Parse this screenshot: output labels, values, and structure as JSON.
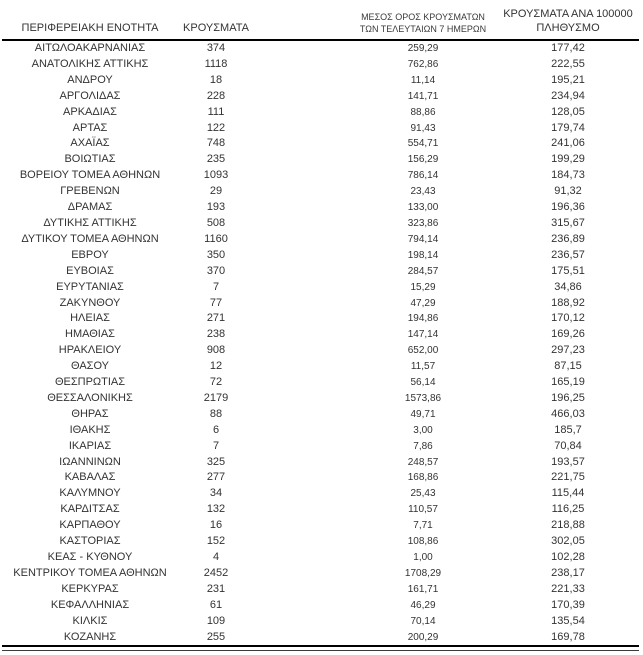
{
  "colors": {
    "text": "#333333",
    "rule": "#000000",
    "background": "#ffffff"
  },
  "chart_data": {
    "type": "table",
    "title": "",
    "columns": [
      "ΠΕΡΙΦΕΡΕΙΑΚΗ ΕΝΟΤΗΤΑ",
      "ΚΡΟΥΣΜΑΤΑ",
      "ΜΕΣΟΣ ΟΡΟΣ ΚΡΟΥΣΜΑΤΩΝ ΤΩΝ ΤΕΛΕΥΤΑΙΩΝ 7 ΗΜΕΡΩΝ",
      "ΚΡΟΥΣΜΑΤΑ ΑΝΑ 100000 ΠΛΗΘΥΣΜΟ"
    ],
    "header_lines": [
      [
        "ΠΕΡΙΦΕΡΕΙΑΚΗ ΕΝΟΤΗΤΑ"
      ],
      [
        "ΚΡΟΥΣΜΑΤΑ"
      ],
      [
        "ΜΕΣΟΣ ΟΡΟΣ ΚΡΟΥΣΜΑΤΩΝ",
        "ΤΩΝ ΤΕΛΕΥΤΑΙΩΝ 7 ΗΜΕΡΩΝ"
      ],
      [
        "ΚΡΟΥΣΜΑΤΑ ΑΝΑ 100000",
        "ΠΛΗΘΥΣΜΟ"
      ]
    ],
    "rows": [
      [
        "ΑΙΤΩΛΟΑΚΑΡΝΑΝΙΑΣ",
        "374",
        "259,29",
        "177,42"
      ],
      [
        "ΑΝΑΤΟΛΙΚΗΣ ΑΤΤΙΚΗΣ",
        "1118",
        "762,86",
        "222,55"
      ],
      [
        "ΑΝΔΡΟΥ",
        "18",
        "11,14",
        "195,21"
      ],
      [
        "ΑΡΓΟΛΙΔΑΣ",
        "228",
        "141,71",
        "234,94"
      ],
      [
        "ΑΡΚΑΔΙΑΣ",
        "111",
        "88,86",
        "128,05"
      ],
      [
        "ΑΡΤΑΣ",
        "122",
        "91,43",
        "179,74"
      ],
      [
        "ΑΧΑΪΑΣ",
        "748",
        "554,71",
        "241,06"
      ],
      [
        "ΒΟΙΩΤΙΑΣ",
        "235",
        "156,29",
        "199,29"
      ],
      [
        "ΒΟΡΕΙΟΥ ΤΟΜΕΑ ΑΘΗΝΩΝ",
        "1093",
        "786,14",
        "184,73"
      ],
      [
        "ΓΡΕΒΕΝΩΝ",
        "29",
        "23,43",
        "91,32"
      ],
      [
        "ΔΡΑΜΑΣ",
        "193",
        "133,00",
        "196,36"
      ],
      [
        "ΔΥΤΙΚΗΣ ΑΤΤΙΚΗΣ",
        "508",
        "323,86",
        "315,67"
      ],
      [
        "ΔΥΤΙΚΟΥ ΤΟΜΕΑ ΑΘΗΝΩΝ",
        "1160",
        "794,14",
        "236,89"
      ],
      [
        "ΕΒΡΟΥ",
        "350",
        "198,14",
        "236,57"
      ],
      [
        "ΕΥΒΟΙΑΣ",
        "370",
        "284,57",
        "175,51"
      ],
      [
        "ΕΥΡΥΤΑΝΙΑΣ",
        "7",
        "15,29",
        "34,86"
      ],
      [
        "ΖΑΚΥΝΘΟΥ",
        "77",
        "47,29",
        "188,92"
      ],
      [
        "ΗΛΕΙΑΣ",
        "271",
        "194,86",
        "170,12"
      ],
      [
        "ΗΜΑΘΙΑΣ",
        "238",
        "147,14",
        "169,26"
      ],
      [
        "ΗΡΑΚΛΕΙΟΥ",
        "908",
        "652,00",
        "297,23"
      ],
      [
        "ΘΑΣΟΥ",
        "12",
        "11,57",
        "87,15"
      ],
      [
        "ΘΕΣΠΡΩΤΙΑΣ",
        "72",
        "56,14",
        "165,19"
      ],
      [
        "ΘΕΣΣΑΛΟΝΙΚΗΣ",
        "2179",
        "1573,86",
        "196,25"
      ],
      [
        "ΘΗΡΑΣ",
        "88",
        "49,71",
        "466,03"
      ],
      [
        "ΙΘΑΚΗΣ",
        "6",
        "3,00",
        "185,7"
      ],
      [
        "ΙΚΑΡΙΑΣ",
        "7",
        "7,86",
        "70,84"
      ],
      [
        "ΙΩΑΝΝΙΝΩΝ",
        "325",
        "248,57",
        "193,57"
      ],
      [
        "ΚΑΒΑΛΑΣ",
        "277",
        "168,86",
        "221,75"
      ],
      [
        "ΚΑΛΥΜΝΟΥ",
        "34",
        "25,43",
        "115,44"
      ],
      [
        "ΚΑΡΔΙΤΣΑΣ",
        "132",
        "110,57",
        "116,25"
      ],
      [
        "ΚΑΡΠΑΘΟΥ",
        "16",
        "7,71",
        "218,88"
      ],
      [
        "ΚΑΣΤΟΡΙΑΣ",
        "152",
        "108,86",
        "302,05"
      ],
      [
        "ΚΕΑΣ - ΚΥΘΝΟΥ",
        "4",
        "1,00",
        "102,28"
      ],
      [
        "ΚΕΝΤΡΙΚΟΥ ΤΟΜΕΑ ΑΘΗΝΩΝ",
        "2452",
        "1708,29",
        "238,17"
      ],
      [
        "ΚΕΡΚΥΡΑΣ",
        "231",
        "161,71",
        "221,33"
      ],
      [
        "ΚΕΦΑΛΛΗΝΙΑΣ",
        "61",
        "46,29",
        "170,39"
      ],
      [
        "ΚΙΛΚΙΣ",
        "109",
        "70,14",
        "135,54"
      ],
      [
        "ΚΟΖΑΝΗΣ",
        "255",
        "200,29",
        "169,78"
      ]
    ]
  }
}
